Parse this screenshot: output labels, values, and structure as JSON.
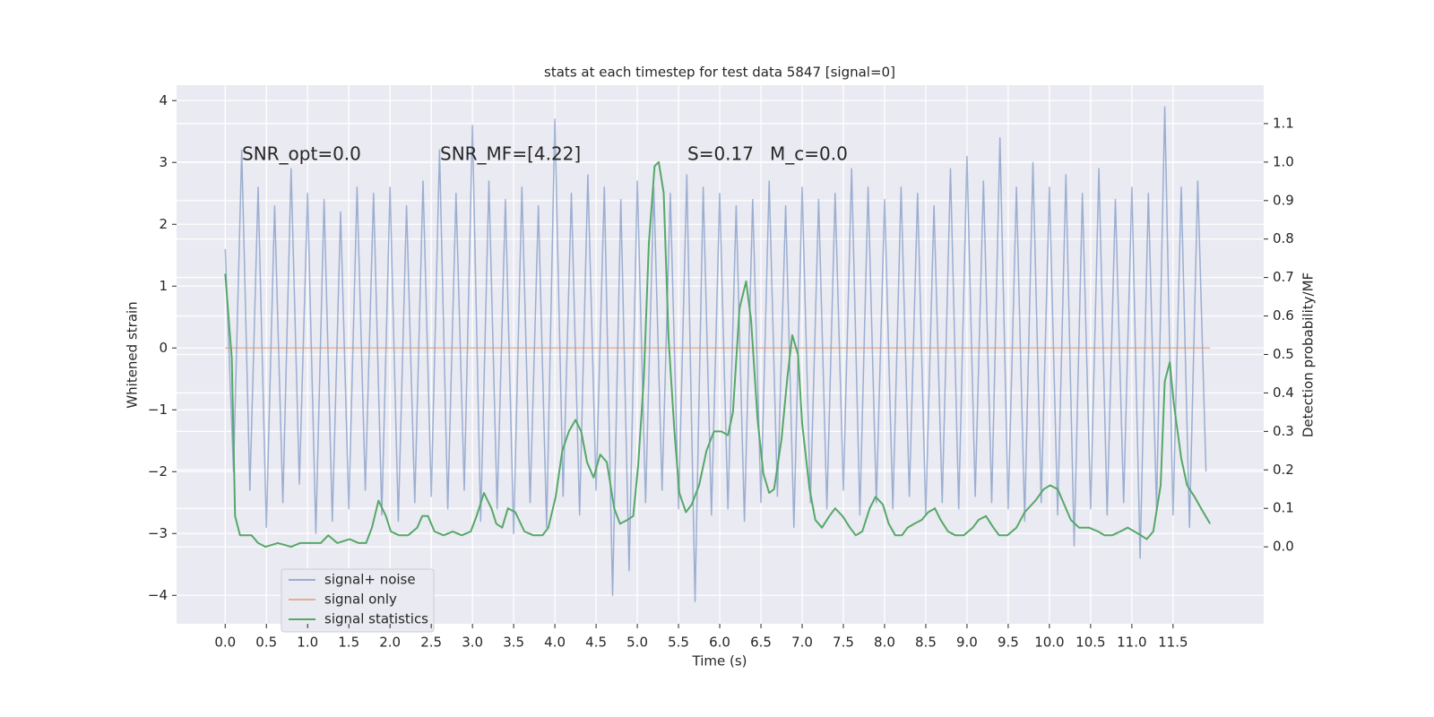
{
  "chart_data": {
    "type": "line",
    "title": "stats at each timestep for test data 5847 [signal=0]",
    "x_label": "Time (s)",
    "y_label": "Whitened strain",
    "y2_label": "Detection probability/MF",
    "annotations": [
      "SNR_opt=0.0",
      "SNR_MF=[4.22]",
      "S=0.17",
      "M_c=0.0"
    ],
    "xlim": [
      -0.59,
      12.6
    ],
    "ylim": [
      -4.46,
      4.25
    ],
    "y2lim": [
      -0.2,
      1.2
    ],
    "xticks": [
      {
        "value": 0,
        "label": "0.0"
      },
      0.5,
      {
        "value": 1,
        "label": "1.0"
      },
      1.5,
      {
        "value": 2,
        "label": "2.0"
      },
      2.5,
      {
        "value": 3,
        "label": "3.0"
      },
      3.5,
      {
        "value": 4,
        "label": "4.0"
      },
      4.5,
      {
        "value": 5,
        "label": "5.0"
      },
      5.5,
      {
        "value": 6,
        "label": "6.0"
      },
      6.5,
      {
        "value": 7,
        "label": "7.0"
      },
      7.5,
      {
        "value": 8,
        "label": "8.0"
      },
      8.5,
      {
        "value": 9,
        "label": "9.0"
      },
      9.5,
      {
        "value": 10,
        "label": "10.0"
      },
      10.5,
      {
        "value": 11,
        "label": "11.0"
      },
      11.5
    ],
    "yticks": [
      {
        "value": -4,
        "label": "−4"
      },
      {
        "value": -3,
        "label": "−3"
      },
      {
        "value": -2,
        "label": "−2"
      },
      {
        "value": -1,
        "label": "−1"
      },
      0,
      1,
      2,
      3,
      4
    ],
    "y2ticks": [
      {
        "value": 0,
        "label": "0.0"
      },
      0.1,
      0.2,
      0.3,
      0.4,
      0.5,
      0.6,
      0.7,
      0.8,
      0.9,
      {
        "value": 1,
        "label": "1.0"
      },
      1.1
    ],
    "grid": true,
    "legend": "lower left",
    "series": [
      {
        "name": "signal+ noise",
        "color": "#4c72b0",
        "x": [
          0,
          0.1,
          0.2,
          0.3,
          0.4,
          0.5,
          0.6,
          0.7,
          0.8,
          0.9,
          1,
          1.1,
          1.2,
          1.3,
          1.4,
          1.5,
          1.6,
          1.7,
          1.8,
          1.9,
          2,
          2.1,
          2.2,
          2.3,
          2.4,
          2.5,
          2.6,
          2.7,
          2.8,
          2.9,
          3,
          3.1,
          3.2,
          3.3,
          3.4,
          3.5,
          3.6,
          3.7,
          3.8,
          3.9,
          4,
          4.1,
          4.2,
          4.3,
          4.4,
          4.5,
          4.6,
          4.7,
          4.8,
          4.9,
          5,
          5.1,
          5.2,
          5.3,
          5.4,
          5.5,
          5.6,
          5.7,
          5.8,
          5.9,
          6,
          6.1,
          6.2,
          6.3,
          6.4,
          6.5,
          6.6,
          6.7,
          6.8,
          6.9,
          7,
          7.1,
          7.2,
          7.3,
          7.4,
          7.5,
          7.6,
          7.7,
          7.8,
          7.9,
          8,
          8.1,
          8.2,
          8.3,
          8.4,
          8.5,
          8.6,
          8.7,
          8.8,
          8.9,
          9,
          9.1,
          9.2,
          9.3,
          9.4,
          9.5,
          9.6,
          9.7,
          9.8,
          9.9,
          10,
          10.1,
          10.2,
          10.3,
          10.4,
          10.5,
          10.6,
          10.7,
          10.8,
          10.9,
          11,
          11.1,
          11.2,
          11.3,
          11.4,
          11.5,
          11.6,
          11.7,
          11.8,
          11.9
        ],
        "values": [
          1.6,
          -2.0,
          3.2,
          -2.3,
          2.6,
          -2.9,
          2.3,
          -2.5,
          2.9,
          -2.2,
          2.5,
          -3.0,
          2.4,
          -2.8,
          2.2,
          -2.6,
          2.6,
          -2.3,
          2.5,
          -2.7,
          2.6,
          -2.8,
          2.3,
          -2.5,
          2.7,
          -2.4,
          3.2,
          -2.6,
          2.5,
          -2.3,
          3.6,
          -2.8,
          2.7,
          -2.6,
          2.4,
          -3.0,
          2.6,
          -2.5,
          2.3,
          -2.9,
          3.7,
          -2.4,
          2.5,
          -2.7,
          2.8,
          -2.3,
          2.6,
          -4.0,
          2.4,
          -3.6,
          2.7,
          -2.5,
          2.6,
          -2.3,
          2.5,
          -2.6,
          2.8,
          -4.1,
          2.6,
          -2.7,
          2.5,
          -2.6,
          2.3,
          -2.8,
          2.4,
          -2.5,
          2.7,
          -2.4,
          2.3,
          -2.9,
          2.6,
          -2.5,
          2.4,
          -2.6,
          2.5,
          -2.3,
          2.9,
          -2.7,
          2.6,
          -2.5,
          2.4,
          -2.6,
          2.6,
          -2.4,
          2.5,
          -2.7,
          2.3,
          -2.5,
          2.9,
          -2.6,
          3.1,
          -2.4,
          2.7,
          -2.5,
          3.4,
          -2.6,
          2.6,
          -2.8,
          3.0,
          -2.5,
          2.6,
          -2.7,
          2.8,
          -3.2,
          2.5,
          -2.6,
          2.9,
          -2.7,
          2.4,
          -2.5,
          2.6,
          -3.4,
          2.5,
          -2.6,
          3.9,
          -2.7,
          2.6,
          -2.9,
          2.7,
          -2.0
        ]
      },
      {
        "name": "signal only",
        "color": "#dd8452",
        "x": [
          0,
          11.95
        ],
        "values": [
          0,
          0
        ]
      },
      {
        "name": "signal statistics",
        "color": "#55a868",
        "axis": "y2",
        "x": [
          0,
          0.08,
          0.12,
          0.18,
          0.25,
          0.32,
          0.4,
          0.49,
          0.64,
          0.8,
          0.91,
          1,
          1.1,
          1.16,
          1.25,
          1.36,
          1.51,
          1.62,
          1.71,
          1.78,
          1.86,
          1.95,
          2.01,
          2.11,
          2.22,
          2.33,
          2.39,
          2.46,
          2.54,
          2.65,
          2.76,
          2.87,
          2.98,
          3.05,
          3.14,
          3.23,
          3.29,
          3.36,
          3.43,
          3.52,
          3.63,
          3.74,
          3.85,
          3.92,
          4.01,
          4.09,
          4.17,
          4.25,
          4.32,
          4.39,
          4.47,
          4.55,
          4.63,
          4.72,
          4.79,
          4.88,
          4.95,
          5.01,
          5.08,
          5.14,
          5.21,
          5.26,
          5.32,
          5.38,
          5.45,
          5.51,
          5.59,
          5.66,
          5.75,
          5.84,
          5.93,
          6.02,
          6.1,
          6.16,
          6.24,
          6.32,
          6.38,
          6.46,
          6.53,
          6.6,
          6.66,
          6.75,
          6.82,
          6.88,
          6.95,
          7,
          7.09,
          7.16,
          7.24,
          7.33,
          7.4,
          7.49,
          7.58,
          7.65,
          7.73,
          7.82,
          7.89,
          7.98,
          8.05,
          8.13,
          8.21,
          8.28,
          8.36,
          8.45,
          8.53,
          8.61,
          8.68,
          8.77,
          8.86,
          8.96,
          9.07,
          9.14,
          9.23,
          9.32,
          9.39,
          9.49,
          9.6,
          9.7,
          9.83,
          9.93,
          10.01,
          10.1,
          10.16,
          10.26,
          10.36,
          10.48,
          10.59,
          10.67,
          10.76,
          10.86,
          10.95,
          11.03,
          11.11,
          11.18,
          11.26,
          11.35,
          11.4,
          11.46,
          11.51,
          11.6,
          11.67,
          11.76,
          11.84,
          11.95
        ],
        "values": [
          0.71,
          0.49,
          0.08,
          0.03,
          0.03,
          0.03,
          0.01,
          0,
          0.01,
          0,
          0.01,
          0.01,
          0.01,
          0.01,
          0.03,
          0.01,
          0.02,
          0.01,
          0.01,
          0.05,
          0.12,
          0.08,
          0.04,
          0.03,
          0.03,
          0.05,
          0.08,
          0.08,
          0.04,
          0.03,
          0.04,
          0.03,
          0.04,
          0.08,
          0.14,
          0.1,
          0.06,
          0.05,
          0.1,
          0.09,
          0.04,
          0.03,
          0.03,
          0.05,
          0.13,
          0.25,
          0.3,
          0.33,
          0.3,
          0.22,
          0.18,
          0.24,
          0.22,
          0.1,
          0.06,
          0.07,
          0.08,
          0.21,
          0.44,
          0.79,
          0.99,
          1,
          0.92,
          0.54,
          0.3,
          0.14,
          0.09,
          0.11,
          0.16,
          0.25,
          0.3,
          0.3,
          0.29,
          0.35,
          0.62,
          0.69,
          0.59,
          0.33,
          0.19,
          0.14,
          0.15,
          0.28,
          0.44,
          0.55,
          0.5,
          0.32,
          0.15,
          0.07,
          0.05,
          0.08,
          0.1,
          0.08,
          0.05,
          0.03,
          0.04,
          0.1,
          0.13,
          0.11,
          0.06,
          0.03,
          0.03,
          0.05,
          0.06,
          0.07,
          0.09,
          0.1,
          0.07,
          0.04,
          0.03,
          0.03,
          0.05,
          0.07,
          0.08,
          0.05,
          0.03,
          0.03,
          0.05,
          0.09,
          0.12,
          0.15,
          0.16,
          0.15,
          0.12,
          0.07,
          0.05,
          0.05,
          0.04,
          0.03,
          0.03,
          0.04,
          0.05,
          0.04,
          0.03,
          0.02,
          0.04,
          0.16,
          0.43,
          0.48,
          0.37,
          0.23,
          0.16,
          0.13,
          0.1,
          0.06
        ]
      }
    ]
  }
}
